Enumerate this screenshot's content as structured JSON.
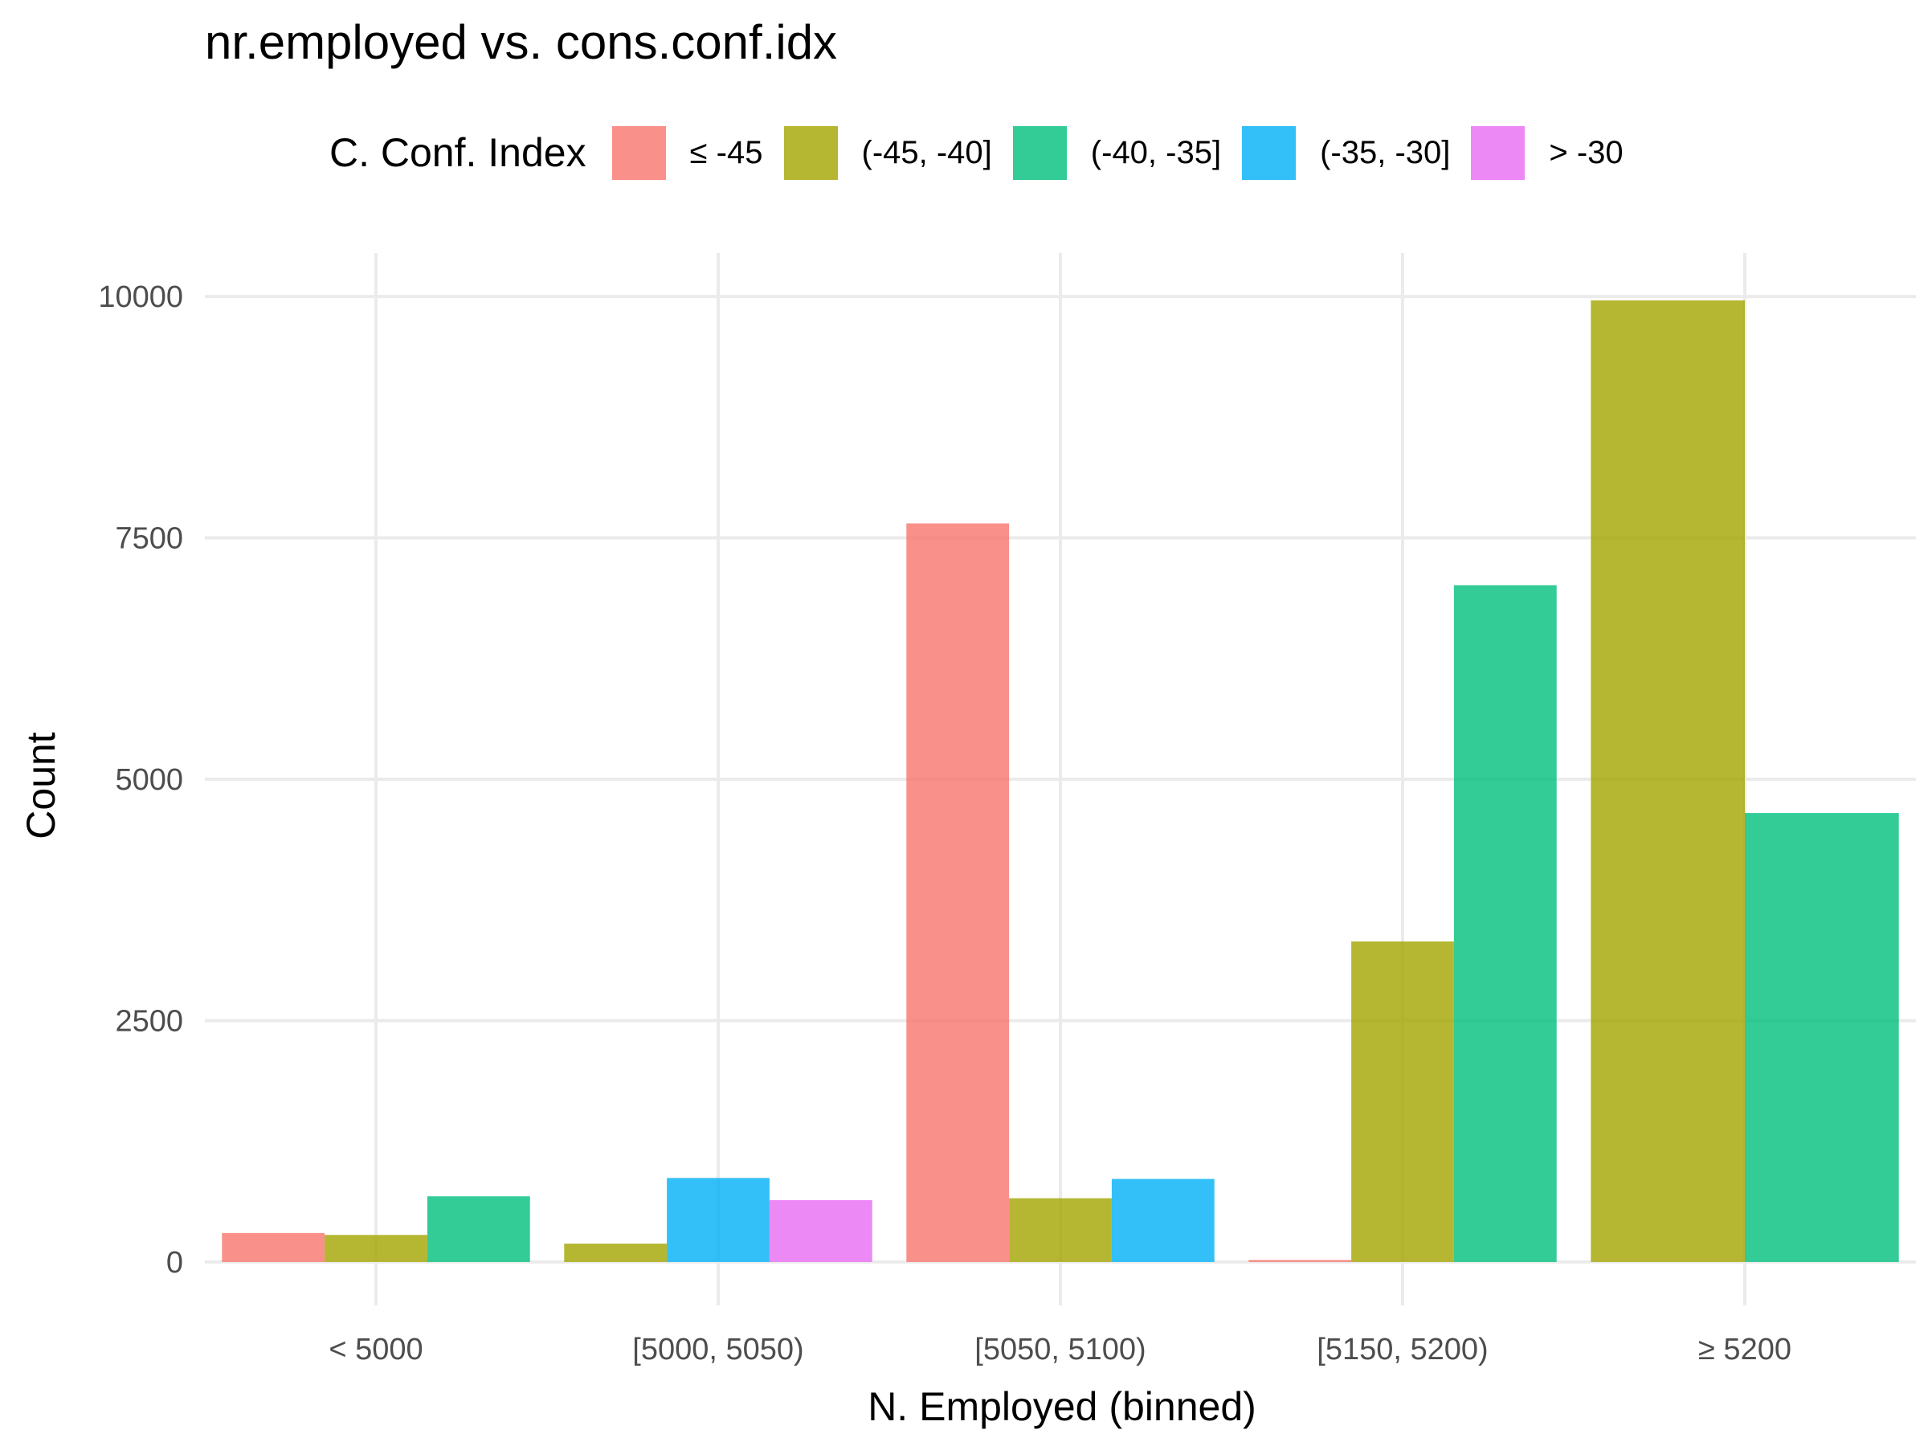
{
  "chart_data": {
    "type": "bar",
    "title": "nr.employed vs. cons.conf.idx",
    "xlabel": "N. Employed (binned)",
    "ylabel": "Count",
    "legend_title": "C. Conf. Index",
    "legend_position": "top",
    "grid": true,
    "ylim": [
      -450,
      10450
    ],
    "yticks": [
      0,
      2500,
      5000,
      7500,
      10000
    ],
    "categories": [
      "< 5000",
      "[5000, 5050)",
      "[5050, 5100)",
      "[5150, 5200)",
      "≥ 5200"
    ],
    "series": [
      {
        "name": "≤ -45",
        "color": "#F8766D",
        "values": [
          300,
          null,
          7650,
          20,
          null
        ]
      },
      {
        "name": "(-45, -40]",
        "color": "#A3A500",
        "values": [
          280,
          190,
          660,
          3320,
          9960
        ]
      },
      {
        "name": "(-40, -35]",
        "color": "#00BF7D",
        "values": [
          680,
          null,
          null,
          7010,
          4650
        ]
      },
      {
        "name": "(-35, -30]",
        "color": "#00B0F6",
        "values": [
          null,
          870,
          860,
          null,
          null
        ]
      },
      {
        "name": "> -30",
        "color": "#E76BF3",
        "values": [
          null,
          640,
          null,
          null,
          null
        ]
      }
    ]
  }
}
